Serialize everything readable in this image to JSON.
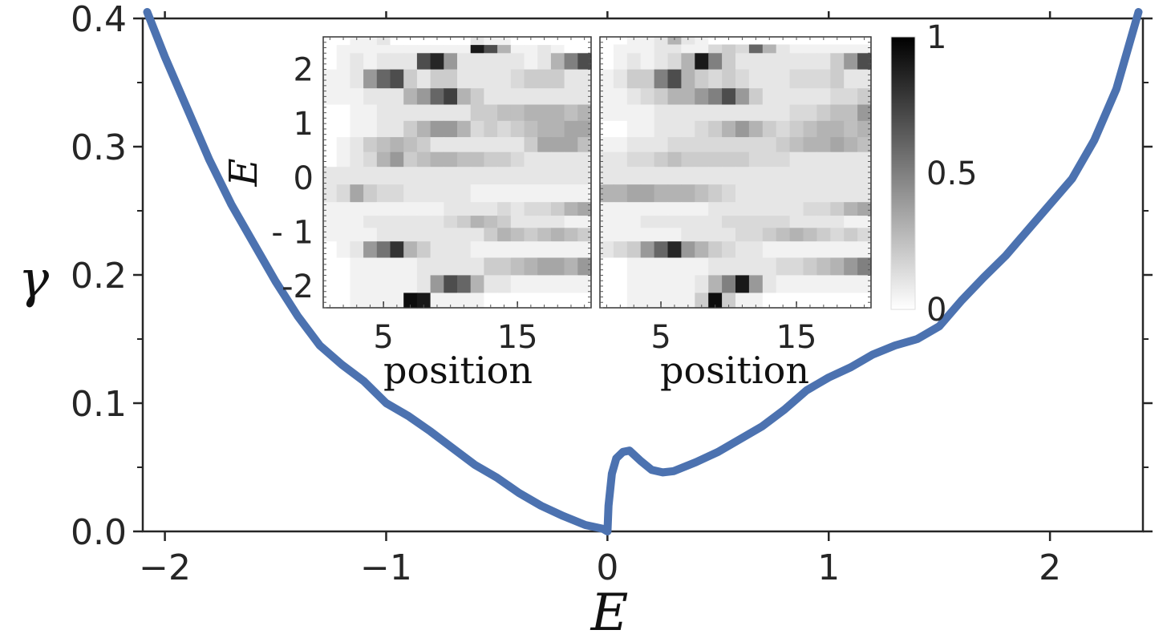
{
  "chart_data": [
    {
      "type": "line",
      "xlabel": "E",
      "ylabel": "γ",
      "xlim": [
        -2.1,
        2.42
      ],
      "ylim": [
        0.0,
        0.4
      ],
      "x_ticks": [
        -2,
        -1,
        0,
        1,
        2
      ],
      "x_tick_labels": [
        "−2",
        "−1",
        "0",
        "1",
        "2"
      ],
      "y_ticks": [
        0.0,
        0.1,
        0.2,
        0.3,
        0.4
      ],
      "y_tick_labels": [
        "0.0",
        "0.1",
        "0.2",
        "0.3",
        "0.4"
      ],
      "grid": false,
      "color": "#4c72b0",
      "series": [
        {
          "x": [
            -2.08,
            -2.0,
            -1.9,
            -1.8,
            -1.7,
            -1.6,
            -1.5,
            -1.4,
            -1.3,
            -1.2,
            -1.1,
            -1.0,
            -0.9,
            -0.8,
            -0.7,
            -0.6,
            -0.5,
            -0.4,
            -0.3,
            -0.2,
            -0.1,
            -0.02,
            0.0,
            0.005,
            0.02,
            0.04,
            0.07,
            0.1,
            0.15,
            0.2,
            0.25,
            0.3,
            0.4,
            0.5,
            0.6,
            0.7,
            0.8,
            0.9,
            1.0,
            1.1,
            1.2,
            1.3,
            1.4,
            1.5,
            1.6,
            1.7,
            1.8,
            1.9,
            2.0,
            2.1,
            2.2,
            2.3,
            2.35,
            2.4
          ],
          "y": [
            0.405,
            0.37,
            0.33,
            0.29,
            0.255,
            0.225,
            0.195,
            0.168,
            0.145,
            0.13,
            0.117,
            0.1,
            0.09,
            0.078,
            0.065,
            0.052,
            0.042,
            0.03,
            0.02,
            0.012,
            0.005,
            0.002,
            0.0,
            0.02,
            0.045,
            0.057,
            0.062,
            0.063,
            0.055,
            0.048,
            0.046,
            0.047,
            0.054,
            0.062,
            0.072,
            0.082,
            0.095,
            0.11,
            0.12,
            0.128,
            0.138,
            0.145,
            0.15,
            0.16,
            0.18,
            0.198,
            0.215,
            0.235,
            0.255,
            0.275,
            0.305,
            0.345,
            0.375,
            0.405
          ]
        }
      ]
    },
    {
      "type": "heatmap",
      "panel": "inset-left",
      "xlabel": "position",
      "ylabel": "E",
      "x_tick_labels": [
        "5",
        "15"
      ],
      "y_tick_labels": [
        "2",
        "1",
        "0",
        "- 1",
        "-2"
      ],
      "y_ticks": [
        2,
        1,
        0,
        -1,
        -2
      ],
      "x_range": [
        0.5,
        20.5
      ],
      "y_range": [
        -2.4,
        2.6
      ],
      "rows": [
        {
          "e": 2.5,
          "cells": [
            0,
            0,
            0.05,
            0.05,
            0.1,
            0,
            0,
            0,
            0,
            0,
            0,
            0.1,
            0.05,
            0.05,
            0,
            0,
            0,
            0,
            0,
            0
          ]
        },
        {
          "e": 2.4,
          "cells": [
            0,
            0.05,
            0.05,
            0.05,
            0.05,
            0.05,
            0.05,
            0.05,
            0.05,
            0.05,
            0.05,
            0.9,
            0.7,
            0.3,
            0.05,
            0.05,
            0.1,
            0.05,
            0,
            0
          ]
        },
        {
          "e": 2.2,
          "cells": [
            0,
            0.05,
            0.1,
            0.05,
            0.1,
            0.1,
            0.1,
            0.7,
            0.85,
            0.4,
            0.1,
            0.1,
            0.1,
            0.1,
            0.1,
            0.05,
            0.1,
            0.3,
            0.5,
            0.7
          ]
        },
        {
          "e": 1.8,
          "cells": [
            0.05,
            0.05,
            0.1,
            0.4,
            0.6,
            0.7,
            0.2,
            0.1,
            0.2,
            0.2,
            0.1,
            0.1,
            0.1,
            0.1,
            0.15,
            0.2,
            0.2,
            0.2,
            0.1,
            0.1
          ]
        },
        {
          "e": 1.5,
          "cells": [
            0.05,
            0.05,
            0.05,
            0.1,
            0.1,
            0.1,
            0.3,
            0.4,
            0.6,
            0.75,
            0.3,
            0.2,
            0.1,
            0.1,
            0.1,
            0.1,
            0.1,
            0.1,
            0.1,
            0.1
          ]
        },
        {
          "e": 1.2,
          "cells": [
            0,
            0,
            0.05,
            0.05,
            0.1,
            0.1,
            0.1,
            0.1,
            0.1,
            0.1,
            0.1,
            0.2,
            0.2,
            0.25,
            0.25,
            0.3,
            0.3,
            0.3,
            0.25,
            0.3
          ]
        },
        {
          "e": 0.9,
          "cells": [
            0,
            0,
            0.05,
            0.05,
            0.1,
            0.1,
            0.2,
            0.3,
            0.4,
            0.4,
            0.3,
            0.15,
            0.2,
            0.15,
            0.2,
            0.25,
            0.3,
            0.3,
            0.35,
            0.35
          ]
        },
        {
          "e": 0.6,
          "cells": [
            0,
            0.05,
            0.1,
            0.2,
            0.25,
            0.3,
            0.25,
            0.2,
            0.1,
            0.1,
            0.1,
            0.1,
            0.1,
            0.1,
            0.1,
            0.2,
            0.35,
            0.35,
            0.35,
            0.25
          ]
        },
        {
          "e": 0.35,
          "cells": [
            0,
            0.05,
            0.1,
            0.15,
            0.3,
            0.4,
            0.2,
            0.25,
            0.3,
            0.3,
            0.25,
            0.25,
            0.2,
            0.2,
            0.15,
            0.1,
            0.1,
            0.1,
            0.1,
            0.1
          ]
        },
        {
          "e": 0.05,
          "cells": [
            0.1,
            0.1,
            0.1,
            0.1,
            0.1,
            0.1,
            0.1,
            0.1,
            0.1,
            0.1,
            0.1,
            0.1,
            0.1,
            0.1,
            0.1,
            0.1,
            0.1,
            0.1,
            0.1,
            0.1
          ]
        },
        {
          "e": -0.3,
          "cells": [
            0.1,
            0.15,
            0.35,
            0.2,
            0.15,
            0.15,
            0.1,
            0.1,
            0.1,
            0.1,
            0.1,
            0.05,
            0.05,
            0.05,
            0.05,
            0.05,
            0.05,
            0.05,
            0.05,
            0.05
          ]
        },
        {
          "e": -0.6,
          "cells": [
            0.05,
            0.05,
            0.05,
            0.05,
            0.05,
            0.05,
            0.05,
            0.05,
            0.05,
            0.1,
            0.1,
            0.1,
            0.1,
            0.15,
            0.1,
            0.15,
            0.15,
            0.2,
            0.3,
            0.35
          ]
        },
        {
          "e": -0.8,
          "cells": [
            0.05,
            0.05,
            0.05,
            0.1,
            0.1,
            0.1,
            0.1,
            0.1,
            0.1,
            0.15,
            0.2,
            0.3,
            0.25,
            0.2,
            0.1,
            0.1,
            0.1,
            0.1,
            0.05,
            0.05
          ]
        },
        {
          "e": -1.05,
          "cells": [
            0.05,
            0.05,
            0.05,
            0.05,
            0.1,
            0.1,
            0.1,
            0.1,
            0.1,
            0.1,
            0.1,
            0.1,
            0.2,
            0.3,
            0.25,
            0.2,
            0.25,
            0.3,
            0.25,
            0.2
          ]
        },
        {
          "e": -1.3,
          "cells": [
            0,
            0.05,
            0.1,
            0.4,
            0.55,
            0.8,
            0.3,
            0.2,
            0.1,
            0.1,
            0.1,
            0.05,
            0.05,
            0.05,
            0.05,
            0.05,
            0.05,
            0.05,
            0.05,
            0.05
          ]
        },
        {
          "e": -1.65,
          "cells": [
            0,
            0,
            0.05,
            0.05,
            0.05,
            0.05,
            0.05,
            0.1,
            0.1,
            0.1,
            0.1,
            0.1,
            0.2,
            0.2,
            0.25,
            0.3,
            0.35,
            0.35,
            0.3,
            0.4
          ]
        },
        {
          "e": -1.95,
          "cells": [
            0,
            0,
            0.05,
            0.05,
            0.05,
            0.05,
            0.05,
            0.1,
            0.4,
            0.7,
            0.6,
            0.3,
            0.1,
            0.1,
            0.05,
            0.05,
            0.05,
            0.05,
            0.05,
            0.05
          ]
        },
        {
          "e": -2.3,
          "cells": [
            0,
            0,
            0.05,
            0.05,
            0.05,
            0.05,
            0.95,
            0.9,
            0.05,
            0.05,
            0.05,
            0.05,
            0,
            0,
            0,
            0,
            0,
            0,
            0,
            0
          ]
        }
      ]
    },
    {
      "type": "heatmap",
      "panel": "inset-right",
      "xlabel": "position",
      "x_tick_labels": [
        "5",
        "15"
      ],
      "x_range": [
        0.5,
        20.5
      ],
      "y_range": [
        -2.4,
        2.6
      ],
      "colorbar": {
        "min": 0,
        "max": 1,
        "tick_labels": [
          "0",
          "0.5",
          "1"
        ],
        "ticks": [
          0,
          0.5,
          1
        ]
      },
      "rows": [
        {
          "e": 2.52,
          "cells": [
            0,
            0,
            0.05,
            0.05,
            0.1,
            0.3,
            0.1,
            0.05,
            0,
            0,
            0,
            0,
            0,
            0,
            0,
            0,
            0,
            0,
            0,
            0
          ]
        },
        {
          "e": 2.4,
          "cells": [
            0,
            0.05,
            0.05,
            0.05,
            0.1,
            0.1,
            0.05,
            0.05,
            0.15,
            0.2,
            0.15,
            0.6,
            0.3,
            0.1,
            0.05,
            0.05,
            0.05,
            0.05,
            0.05,
            0.05
          ]
        },
        {
          "e": 2.2,
          "cells": [
            0,
            0.05,
            0.1,
            0.05,
            0.1,
            0.15,
            0.3,
            0.9,
            0.5,
            0.2,
            0.1,
            0.1,
            0.1,
            0.1,
            0.1,
            0.1,
            0.1,
            0.2,
            0.4,
            0.7
          ]
        },
        {
          "e": 1.8,
          "cells": [
            0.05,
            0.1,
            0.2,
            0.2,
            0.5,
            0.7,
            0.3,
            0.2,
            0.15,
            0.2,
            0.15,
            0.1,
            0.1,
            0.1,
            0.15,
            0.15,
            0.15,
            0.2,
            0.1,
            0.1
          ]
        },
        {
          "e": 1.5,
          "cells": [
            0.05,
            0.05,
            0.1,
            0.15,
            0.2,
            0.3,
            0.3,
            0.4,
            0.5,
            0.7,
            0.4,
            0.2,
            0.1,
            0.1,
            0.1,
            0.1,
            0.1,
            0.15,
            0.15,
            0.2
          ]
        },
        {
          "e": 1.2,
          "cells": [
            0.05,
            0.05,
            0.05,
            0.05,
            0.1,
            0.1,
            0.1,
            0.1,
            0.1,
            0.1,
            0.1,
            0.1,
            0.1,
            0.1,
            0.15,
            0.15,
            0.2,
            0.25,
            0.25,
            0.4
          ]
        },
        {
          "e": 0.9,
          "cells": [
            0,
            0,
            0.05,
            0.05,
            0.1,
            0.1,
            0.1,
            0.15,
            0.2,
            0.3,
            0.4,
            0.3,
            0.2,
            0.15,
            0.2,
            0.25,
            0.3,
            0.3,
            0.25,
            0.3
          ]
        },
        {
          "e": 0.6,
          "cells": [
            0.05,
            0.05,
            0.1,
            0.1,
            0.1,
            0.15,
            0.15,
            0.15,
            0.15,
            0.15,
            0.15,
            0.15,
            0.15,
            0.2,
            0.25,
            0.3,
            0.3,
            0.35,
            0.3,
            0.25
          ]
        },
        {
          "e": 0.35,
          "cells": [
            0.1,
            0.1,
            0.15,
            0.15,
            0.2,
            0.25,
            0.2,
            0.2,
            0.2,
            0.2,
            0.2,
            0.15,
            0.15,
            0.15,
            0.1,
            0.1,
            0.1,
            0.1,
            0.1,
            0.1
          ]
        },
        {
          "e": 0.05,
          "cells": [
            0.1,
            0.1,
            0.1,
            0.1,
            0.1,
            0.1,
            0.1,
            0.1,
            0.1,
            0.1,
            0.1,
            0.1,
            0.1,
            0.1,
            0.1,
            0.1,
            0.1,
            0.1,
            0.1,
            0.1
          ]
        },
        {
          "e": -0.3,
          "cells": [
            0.3,
            0.3,
            0.35,
            0.35,
            0.3,
            0.3,
            0.3,
            0.25,
            0.2,
            0.15,
            0.1,
            0.1,
            0.1,
            0.1,
            0.1,
            0.1,
            0.1,
            0.1,
            0.1,
            0.1
          ]
        },
        {
          "e": -0.6,
          "cells": [
            0.05,
            0.05,
            0.05,
            0.05,
            0.05,
            0.05,
            0.05,
            0.05,
            0.1,
            0.1,
            0.1,
            0.1,
            0.1,
            0.1,
            0.1,
            0.15,
            0.15,
            0.2,
            0.3,
            0.35
          ]
        },
        {
          "e": -0.8,
          "cells": [
            0.05,
            0.05,
            0.05,
            0.1,
            0.1,
            0.1,
            0.1,
            0.1,
            0.1,
            0.15,
            0.15,
            0.15,
            0.15,
            0.15,
            0.1,
            0.1,
            0.1,
            0.1,
            0.05,
            0.05
          ]
        },
        {
          "e": -1.05,
          "cells": [
            0.05,
            0.05,
            0.05,
            0.05,
            0.05,
            0.05,
            0.1,
            0.1,
            0.1,
            0.1,
            0.15,
            0.15,
            0.2,
            0.25,
            0.3,
            0.25,
            0.2,
            0.15,
            0.2,
            0.15
          ]
        },
        {
          "e": -1.3,
          "cells": [
            0.1,
            0.15,
            0.2,
            0.4,
            0.6,
            0.85,
            0.4,
            0.3,
            0.2,
            0.15,
            0.1,
            0.1,
            0.05,
            0.05,
            0.05,
            0.05,
            0.05,
            0.05,
            0.05,
            0.05
          ]
        },
        {
          "e": -1.65,
          "cells": [
            0,
            0,
            0.05,
            0.05,
            0.05,
            0.05,
            0.05,
            0.05,
            0.1,
            0.1,
            0.1,
            0.1,
            0.1,
            0.15,
            0.15,
            0.2,
            0.25,
            0.3,
            0.4,
            0.5
          ]
        },
        {
          "e": -1.95,
          "cells": [
            0,
            0,
            0.05,
            0.05,
            0.05,
            0.05,
            0.05,
            0.1,
            0.3,
            0.5,
            0.9,
            0.4,
            0.1,
            0.05,
            0.05,
            0.05,
            0.05,
            0.05,
            0.05,
            0.05
          ]
        },
        {
          "e": -2.3,
          "cells": [
            0,
            0,
            0.05,
            0.05,
            0.05,
            0.05,
            0.05,
            0.2,
            0.95,
            0.2,
            0.05,
            0.05,
            0,
            0,
            0,
            0,
            0,
            0,
            0,
            0
          ]
        }
      ]
    }
  ]
}
